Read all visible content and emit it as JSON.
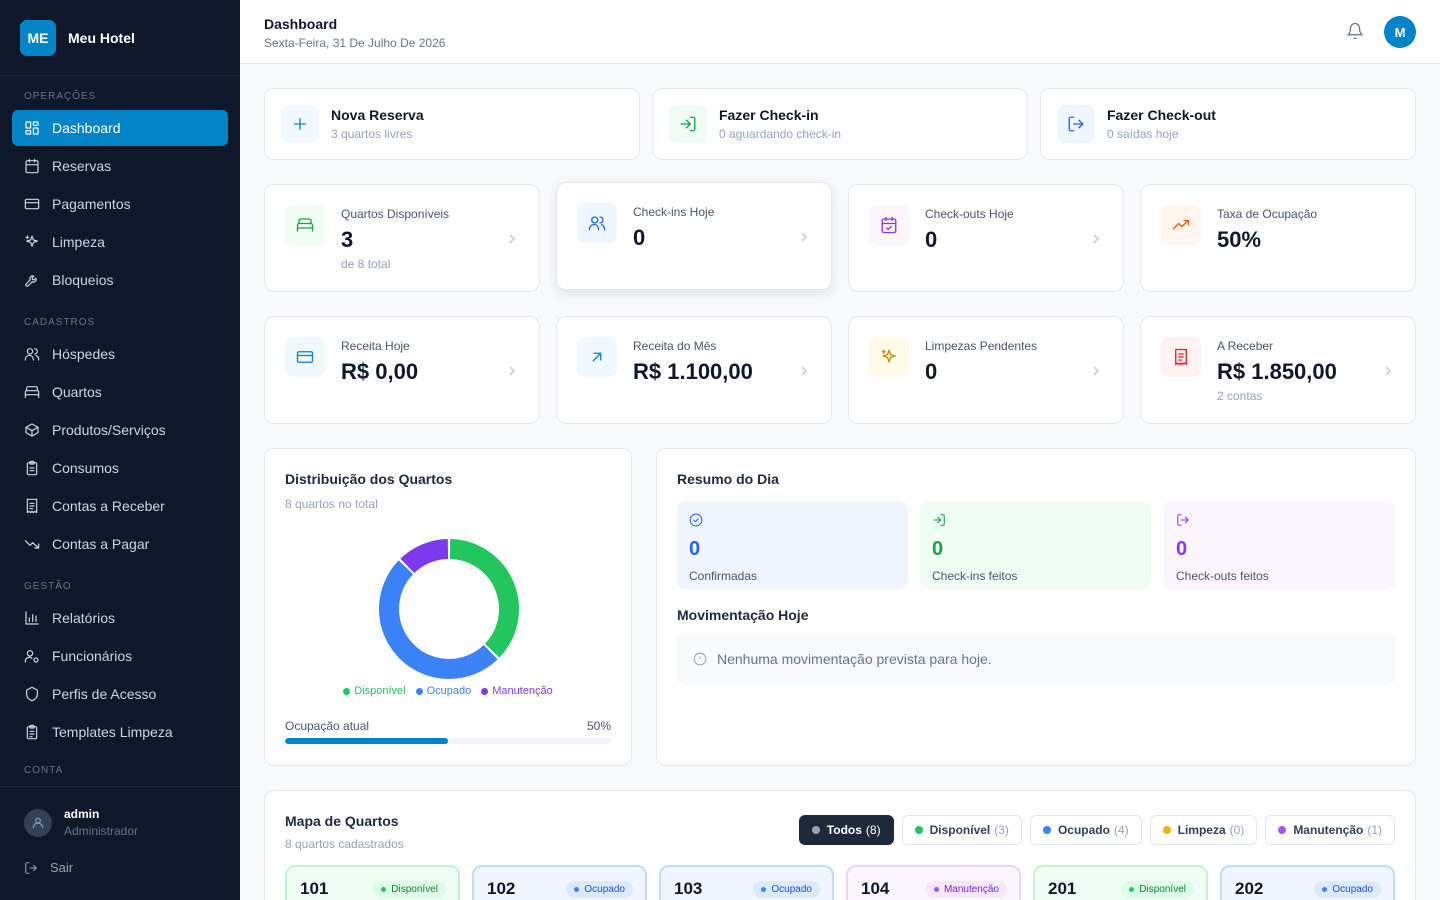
{
  "brand": {
    "logo": "ME",
    "name": "Meu Hotel"
  },
  "sidebar": {
    "sections": {
      "operacoes": "OPERAÇÕES",
      "cadastros": "CADASTROS",
      "gestao": "GESTÃO",
      "conta": "CONTA"
    },
    "items": [
      {
        "label": "Dashboard",
        "icon": "grid-icon"
      },
      {
        "label": "Reservas",
        "icon": "calendar-icon"
      },
      {
        "label": "Pagamentos",
        "icon": "credit-card-icon"
      },
      {
        "label": "Limpeza",
        "icon": "sparkles-icon"
      },
      {
        "label": "Bloqueios",
        "icon": "wrench-icon"
      },
      {
        "label": "Hóspedes",
        "icon": "users-icon"
      },
      {
        "label": "Quartos",
        "icon": "bed-icon"
      },
      {
        "label": "Produtos/Serviços",
        "icon": "package-icon"
      },
      {
        "label": "Consumos",
        "icon": "clipboard-icon"
      },
      {
        "label": "Contas a Receber",
        "icon": "receipt-icon"
      },
      {
        "label": "Contas a Pagar",
        "icon": "trending-down-icon"
      },
      {
        "label": "Relatórios",
        "icon": "bar-chart-icon"
      },
      {
        "label": "Funcionários",
        "icon": "user-cog-icon"
      },
      {
        "label": "Perfis de Acesso",
        "icon": "shield-icon"
      },
      {
        "label": "Templates Limpeza",
        "icon": "clipboard-list-icon"
      }
    ],
    "user": {
      "name": "admin",
      "role": "Administrador"
    },
    "logout": "Sair"
  },
  "header": {
    "title": "Dashboard",
    "date": "Sexta-Feira, 31 De Julho De 2026",
    "avatar": "M"
  },
  "quick_actions": [
    {
      "title": "Nova Reserva",
      "sub": "3 quartos livres"
    },
    {
      "title": "Fazer Check-in",
      "sub": "0 aguardando check-in"
    },
    {
      "title": "Fazer Check-out",
      "sub": "0 saídas hoje"
    }
  ],
  "stats": [
    {
      "label": "Quartos Disponíveis",
      "value": "3",
      "sub": "de 8 total"
    },
    {
      "label": "Check-ins Hoje",
      "value": "0",
      "sub": ""
    },
    {
      "label": "Check-outs Hoje",
      "value": "0",
      "sub": ""
    },
    {
      "label": "Taxa de Ocupação",
      "value": "50%",
      "sub": ""
    },
    {
      "label": "Receita Hoje",
      "value": "R$ 0,00",
      "sub": ""
    },
    {
      "label": "Receita do Mês",
      "value": "R$ 1.100,00",
      "sub": ""
    },
    {
      "label": "Limpezas Pendentes",
      "value": "0",
      "sub": ""
    },
    {
      "label": "A Receber",
      "value": "R$ 1.850,00",
      "sub": "2 contas"
    }
  ],
  "distribution": {
    "title": "Distribuição dos Quartos",
    "subtitle": "8 quartos no total",
    "occupancy_label": "Ocupação atual",
    "occupancy_value": "50%",
    "occupancy_fraction": 0.5
  },
  "chart_data": {
    "type": "pie",
    "categories": [
      "Disponível",
      "Ocupado",
      "Manutenção"
    ],
    "values": [
      3,
      4,
      1
    ],
    "colors": [
      "#22c55e",
      "#3b82f6",
      "#7c3aed"
    ],
    "legend": "bottom"
  },
  "summary": {
    "title": "Resumo do Dia",
    "boxes": [
      {
        "value": "0",
        "label": "Confirmadas"
      },
      {
        "value": "0",
        "label": "Check-ins feitos"
      },
      {
        "value": "0",
        "label": "Check-outs feitos"
      }
    ],
    "movement_title": "Movimentação Hoje",
    "movement_empty": "Nenhuma movimentação prevista para hoje."
  },
  "room_map": {
    "title": "Mapa de Quartos",
    "subtitle": "8 quartos cadastrados",
    "filters": [
      {
        "label": "Todos",
        "count": "(8)"
      },
      {
        "label": "Disponível",
        "count": "(3)"
      },
      {
        "label": "Ocupado",
        "count": "(4)"
      },
      {
        "label": "Limpeza",
        "count": "(0)"
      },
      {
        "label": "Manutenção",
        "count": "(1)"
      }
    ],
    "rooms": [
      {
        "number": "101",
        "status": "Disponível"
      },
      {
        "number": "102",
        "status": "Ocupado"
      },
      {
        "number": "103",
        "status": "Ocupado"
      },
      {
        "number": "104",
        "status": "Manutenção"
      },
      {
        "number": "201",
        "status": "Disponível"
      },
      {
        "number": "202",
        "status": "Ocupado"
      }
    ]
  },
  "colors": {
    "accent": "#0284c7",
    "sidebar": "#0f172a",
    "available": "#22c55e",
    "occupied": "#3b82f6",
    "maintenance": "#7c3aed",
    "cleaning": "#eab308"
  }
}
